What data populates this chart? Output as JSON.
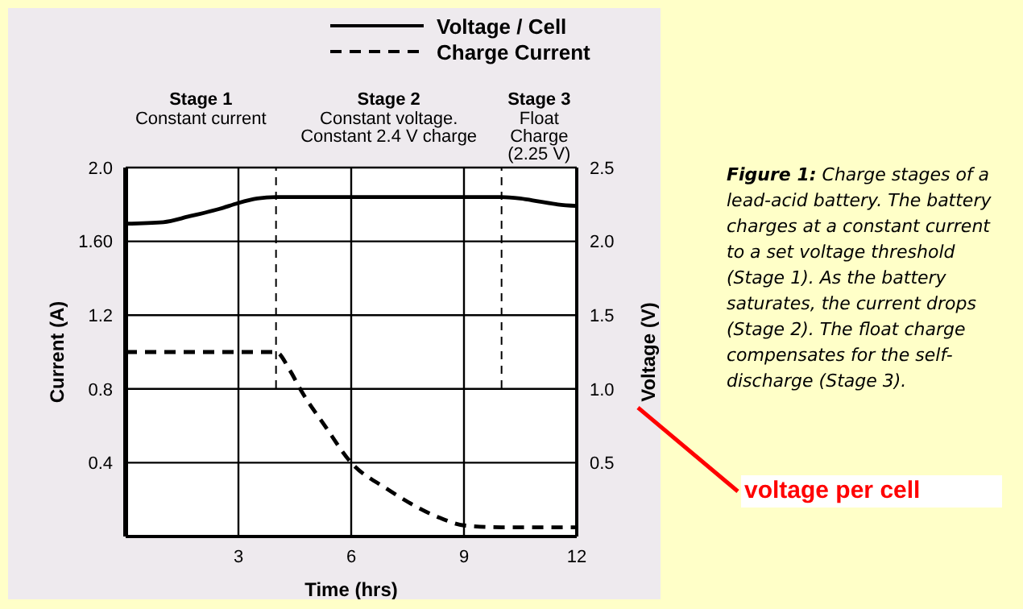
{
  "chart_data": {
    "type": "line",
    "xlabel": "Time (hrs)",
    "ylabel": "Current (A)",
    "y2label": "Voltage (V)",
    "xlim": [
      0,
      12
    ],
    "xticks": [
      3,
      6,
      9,
      12
    ],
    "ylim": [
      0,
      2.0
    ],
    "yticks": [
      0.4,
      0.8,
      1.2,
      {
        "value": 1.6,
        "label": "1.60"
      },
      {
        "value": 2.0,
        "label": "2.0"
      }
    ],
    "y2lim": [
      0,
      2.5
    ],
    "y2ticks": [
      0.5,
      {
        "value": 1.0,
        "label": "1.0"
      },
      1.5,
      {
        "value": 2.0,
        "label": "2.0"
      },
      2.5
    ],
    "grid": true,
    "legend": "top",
    "marker": "none",
    "series": [
      {
        "name": "Voltage / Cell",
        "color": "#000000",
        "axis": "y2",
        "line_style": "solid",
        "x": [
          0,
          1,
          1.7,
          2.5,
          3,
          3.5,
          4,
          10,
          10.5,
          11,
          11.5,
          12
        ],
        "values": [
          2.12,
          2.13,
          2.17,
          2.22,
          2.26,
          2.29,
          2.3,
          2.3,
          2.29,
          2.27,
          2.25,
          2.24
        ]
      },
      {
        "name": "Charge Current",
        "color": "#000000",
        "line_style": "dashed",
        "x": [
          0,
          4,
          4.37,
          4.67,
          5.3,
          6,
          6.94,
          8.37,
          9,
          10,
          12
        ],
        "values": [
          1.0,
          1.0,
          0.9,
          0.79,
          0.6,
          0.4,
          0.26,
          0.1,
          0.06,
          0.05,
          0.05
        ]
      }
    ],
    "ref_lines": [
      {
        "axis": "x",
        "value": 4,
        "line_style": "dashed"
      },
      {
        "axis": "x",
        "value": 10,
        "line_style": "dashed"
      }
    ],
    "annotations": [
      "Stage 1\nConstant current",
      "Stage 2\nConstant voltage.\nConstant 2.4 V charge",
      "Stage 3\nFloat\nCharge\n(2.25 V)",
      "Figure 1:",
      "Charge stages of a lead-acid battery. The battery charges at a constant current to a set voltage threshold (Stage 1). As the battery saturates, the current drops (Stage 2). The float charge compensates for the self-discharge (Stage 3).",
      "voltage per cell"
    ]
  }
}
